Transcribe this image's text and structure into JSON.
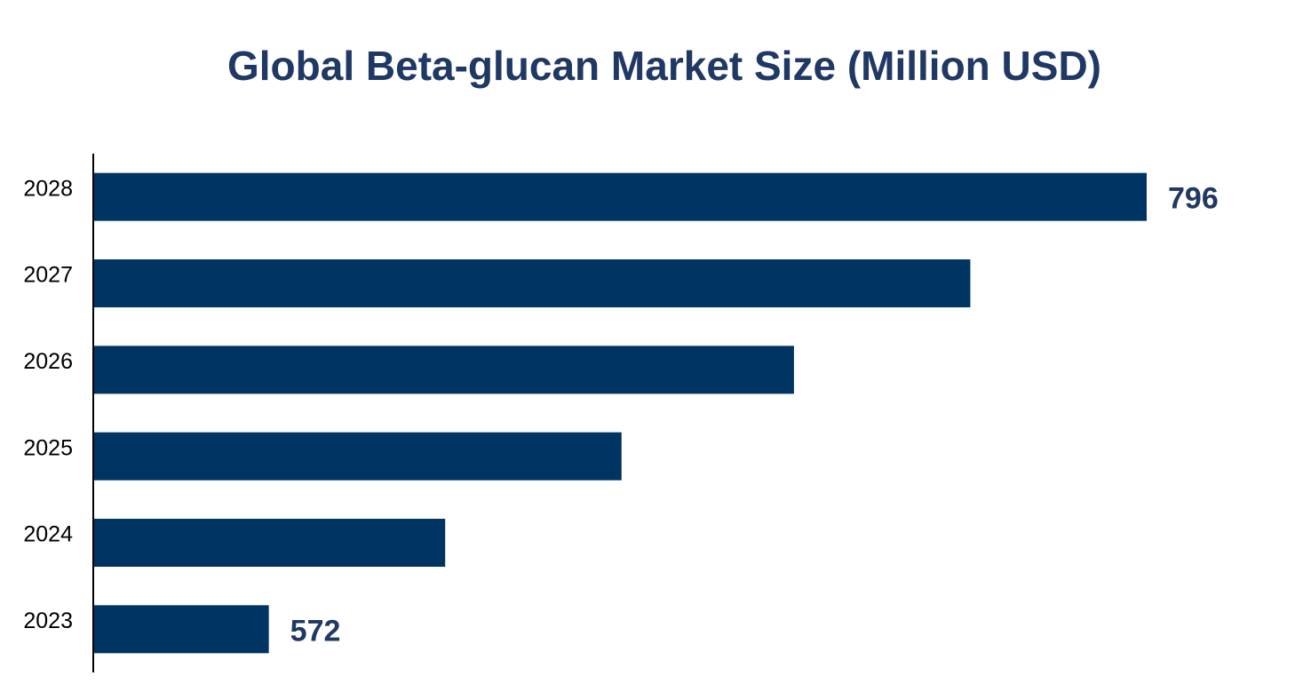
{
  "chart_data": {
    "type": "barh",
    "title": "Global Beta-glucan Market Size (Million USD)",
    "categories": [
      "2023",
      "2024",
      "2025",
      "2026",
      "2027",
      "2028"
    ],
    "values": [
      572,
      617,
      662,
      706,
      751,
      796
    ],
    "value_label_indices": [
      0,
      5
    ],
    "color": "#003462",
    "xlim": [
      527.2,
      796
    ]
  }
}
